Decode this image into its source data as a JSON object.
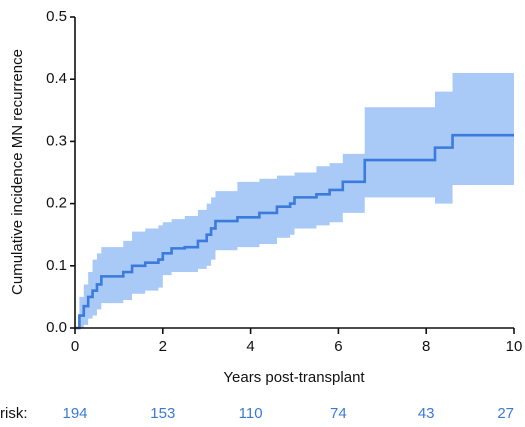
{
  "chart_data": {
    "type": "line",
    "x_label": "Years post-transplant",
    "y_label": "Cumulative incidence MN recurrence",
    "x": [
      0,
      0.1,
      0.2,
      0.3,
      0.4,
      0.5,
      0.6,
      1.1,
      1.3,
      1.6,
      1.9,
      2.0,
      2.2,
      2.5,
      2.8,
      3.0,
      3.1,
      3.2,
      3.7,
      4.2,
      4.6,
      4.9,
      5.0,
      5.5,
      5.8,
      6.1,
      6.6,
      8.2,
      8.6,
      10
    ],
    "values": [
      0,
      0.02,
      0.035,
      0.05,
      0.06,
      0.07,
      0.083,
      0.09,
      0.1,
      0.105,
      0.11,
      0.12,
      0.128,
      0.13,
      0.14,
      0.15,
      0.16,
      0.172,
      0.178,
      0.185,
      0.195,
      0.2,
      0.21,
      0.215,
      0.222,
      0.235,
      0.27,
      0.29,
      0.31,
      0.31
    ],
    "ci_upper": [
      0,
      0.05,
      0.07,
      0.09,
      0.11,
      0.12,
      0.13,
      0.14,
      0.155,
      0.16,
      0.165,
      0.17,
      0.175,
      0.18,
      0.19,
      0.2,
      0.21,
      0.22,
      0.235,
      0.24,
      0.245,
      0.245,
      0.25,
      0.26,
      0.265,
      0.28,
      0.355,
      0.38,
      0.41,
      0.41
    ],
    "ci_lower": [
      0,
      0,
      0.005,
      0.015,
      0.02,
      0.03,
      0.04,
      0.045,
      0.055,
      0.06,
      0.065,
      0.085,
      0.09,
      0.09,
      0.095,
      0.1,
      0.11,
      0.125,
      0.13,
      0.135,
      0.145,
      0.15,
      0.16,
      0.165,
      0.17,
      0.185,
      0.21,
      0.2,
      0.23,
      0.23
    ],
    "color": "#3a7bdc",
    "band_color": "#a9c9f7",
    "xlim": [
      0,
      10
    ],
    "ylim": [
      0,
      0.5
    ],
    "xticks": [
      0,
      2,
      4,
      6,
      8,
      10
    ],
    "yticks": [
      {
        "value": 0,
        "label": "0.0"
      },
      0.1,
      0.2,
      0.3,
      0.4,
      0.5
    ],
    "risk_label": "risk:",
    "risk_counts": [
      194,
      153,
      110,
      74,
      43,
      27
    ]
  }
}
